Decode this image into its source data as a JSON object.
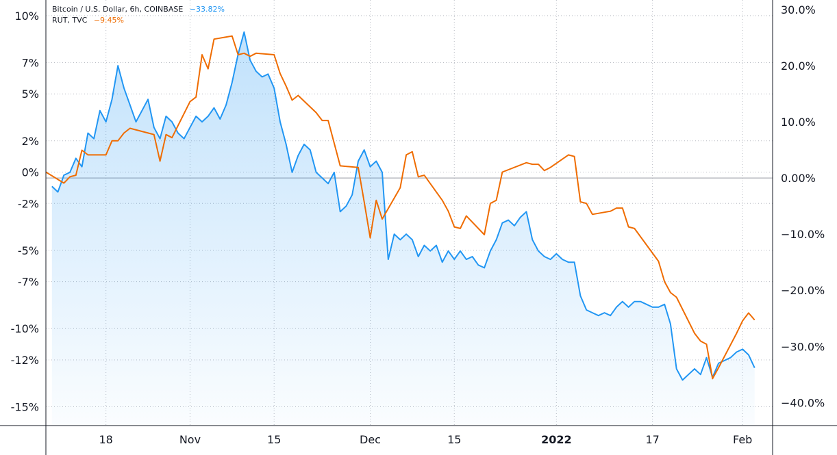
{
  "legend": {
    "btc_label": "Bitcoin / U.S. Dollar, 6h, COINBASE",
    "btc_value": "−33.82%",
    "rut_label": "RUT, TVC",
    "rut_value": "−9.45%"
  },
  "colors": {
    "btc": "#2196f3",
    "rut": "#ef6c00",
    "grid": "#b9bcc4",
    "axis": "#131722",
    "zero": "#9598a1"
  },
  "chart_data": {
    "type": "line",
    "x_axis": {
      "ticks": [
        {
          "label": "18",
          "date": "2021-10-18"
        },
        {
          "label": "Nov",
          "date": "2021-11-01"
        },
        {
          "label": "15",
          "date": "2021-11-15"
        },
        {
          "label": "Dec",
          "date": "2021-12-01"
        },
        {
          "label": "15",
          "date": "2021-12-15"
        },
        {
          "label": "2022",
          "date": "2022-01-01",
          "bold": true
        },
        {
          "label": "17",
          "date": "2022-01-17"
        },
        {
          "label": "Feb",
          "date": "2022-02-01"
        }
      ],
      "range": [
        "2021-10-08",
        "2022-02-06"
      ]
    },
    "left_axis": {
      "ticks": [
        "10%",
        "7%",
        "5%",
        "2%",
        "0%",
        "-2%",
        "-5%",
        "-7%",
        "-10%",
        "-12%",
        "-15%"
      ],
      "ylim": [
        -16.2,
        11.0
      ],
      "scale": "percent"
    },
    "right_axis": {
      "ticks": [
        "30.0%",
        "20.0%",
        "10.0%",
        "0.00%",
        "−10.0%",
        "−20.0%",
        "−30.0%",
        "−40.0%"
      ],
      "ylim": [
        -44.1,
        31.7
      ],
      "scale": "percent"
    },
    "grid": true,
    "legend_position": "top-left",
    "series": [
      {
        "name": "Bitcoin / U.S. Dollar, 6h, COINBASE",
        "axis": "right",
        "fill": true,
        "points": [
          [
            "2021-10-09",
            -1.5
          ],
          [
            "2021-10-10",
            -2.5
          ],
          [
            "2021-10-11",
            0.5
          ],
          [
            "2021-10-12",
            1.0
          ],
          [
            "2021-10-13",
            3.5
          ],
          [
            "2021-10-14",
            2.0
          ],
          [
            "2021-10-15",
            8.0
          ],
          [
            "2021-10-16",
            7.0
          ],
          [
            "2021-10-17",
            12.0
          ],
          [
            "2021-10-18",
            10.0
          ],
          [
            "2021-10-19",
            14.0
          ],
          [
            "2021-10-20",
            20.0
          ],
          [
            "2021-10-21",
            16.0
          ],
          [
            "2021-10-22",
            13.0
          ],
          [
            "2021-10-23",
            10.0
          ],
          [
            "2021-10-24",
            12.0
          ],
          [
            "2021-10-25",
            14.0
          ],
          [
            "2021-10-26",
            9.0
          ],
          [
            "2021-10-27",
            7.0
          ],
          [
            "2021-10-28",
            11.0
          ],
          [
            "2021-10-29",
            10.0
          ],
          [
            "2021-10-30",
            8.0
          ],
          [
            "2021-10-31",
            7.0
          ],
          [
            "2021-11-01",
            9.0
          ],
          [
            "2021-11-02",
            11.0
          ],
          [
            "2021-11-03",
            10.0
          ],
          [
            "2021-11-04",
            11.0
          ],
          [
            "2021-11-05",
            12.5
          ],
          [
            "2021-11-06",
            10.5
          ],
          [
            "2021-11-07",
            13.0
          ],
          [
            "2021-11-08",
            17.0
          ],
          [
            "2021-11-09",
            22.0
          ],
          [
            "2021-11-10",
            26.0
          ],
          [
            "2021-11-11",
            21.0
          ],
          [
            "2021-11-12",
            19.0
          ],
          [
            "2021-11-13",
            18.0
          ],
          [
            "2021-11-14",
            18.5
          ],
          [
            "2021-11-15",
            16.0
          ],
          [
            "2021-11-16",
            10.0
          ],
          [
            "2021-11-17",
            6.0
          ],
          [
            "2021-11-18",
            1.0
          ],
          [
            "2021-11-19",
            4.0
          ],
          [
            "2021-11-20",
            6.0
          ],
          [
            "2021-11-21",
            5.0
          ],
          [
            "2021-11-22",
            1.0
          ],
          [
            "2021-11-23",
            0.0
          ],
          [
            "2021-11-24",
            -1.0
          ],
          [
            "2021-11-25",
            1.0
          ],
          [
            "2021-11-26",
            -6.0
          ],
          [
            "2021-11-27",
            -5.0
          ],
          [
            "2021-11-28",
            -3.0
          ],
          [
            "2021-11-29",
            3.0
          ],
          [
            "2021-11-30",
            5.0
          ],
          [
            "2021-12-01",
            2.0
          ],
          [
            "2021-12-02",
            3.0
          ],
          [
            "2021-12-03",
            1.0
          ],
          [
            "2021-12-04",
            -14.5
          ],
          [
            "2021-12-05",
            -10.0
          ],
          [
            "2021-12-06",
            -11.0
          ],
          [
            "2021-12-07",
            -10.0
          ],
          [
            "2021-12-08",
            -11.0
          ],
          [
            "2021-12-09",
            -14.0
          ],
          [
            "2021-12-10",
            -12.0
          ],
          [
            "2021-12-11",
            -13.0
          ],
          [
            "2021-12-12",
            -12.0
          ],
          [
            "2021-12-13",
            -15.0
          ],
          [
            "2021-12-14",
            -13.0
          ],
          [
            "2021-12-15",
            -14.5
          ],
          [
            "2021-12-16",
            -13.0
          ],
          [
            "2021-12-17",
            -14.5
          ],
          [
            "2021-12-18",
            -14.0
          ],
          [
            "2021-12-19",
            -15.5
          ],
          [
            "2021-12-20",
            -16.0
          ],
          [
            "2021-12-21",
            -13.0
          ],
          [
            "2021-12-22",
            -11.0
          ],
          [
            "2021-12-23",
            -8.0
          ],
          [
            "2021-12-24",
            -7.5
          ],
          [
            "2021-12-25",
            -8.5
          ],
          [
            "2021-12-26",
            -7.0
          ],
          [
            "2021-12-27",
            -6.0
          ],
          [
            "2021-12-28",
            -11.0
          ],
          [
            "2021-12-29",
            -13.0
          ],
          [
            "2021-12-30",
            -14.0
          ],
          [
            "2021-12-31",
            -14.5
          ],
          [
            "2022-01-01",
            -13.5
          ],
          [
            "2022-01-02",
            -14.5
          ],
          [
            "2022-01-03",
            -15.0
          ],
          [
            "2022-01-04",
            -15.0
          ],
          [
            "2022-01-05",
            -21.0
          ],
          [
            "2022-01-06",
            -23.5
          ],
          [
            "2022-01-07",
            -24.0
          ],
          [
            "2022-01-08",
            -24.5
          ],
          [
            "2022-01-09",
            -24.0
          ],
          [
            "2022-01-10",
            -24.5
          ],
          [
            "2022-01-11",
            -23.0
          ],
          [
            "2022-01-12",
            -22.0
          ],
          [
            "2022-01-13",
            -23.0
          ],
          [
            "2022-01-14",
            -22.0
          ],
          [
            "2022-01-15",
            -22.0
          ],
          [
            "2022-01-16",
            -22.5
          ],
          [
            "2022-01-17",
            -23.0
          ],
          [
            "2022-01-18",
            -23.0
          ],
          [
            "2022-01-19",
            -22.5
          ],
          [
            "2022-01-20",
            -26.0
          ],
          [
            "2022-01-21",
            -34.0
          ],
          [
            "2022-01-22",
            -36.0
          ],
          [
            "2022-01-23",
            -35.0
          ],
          [
            "2022-01-24",
            -34.0
          ],
          [
            "2022-01-25",
            -35.0
          ],
          [
            "2022-01-26",
            -32.0
          ],
          [
            "2022-01-27",
            -35.5
          ],
          [
            "2022-01-28",
            -33.0
          ],
          [
            "2022-01-29",
            -32.5
          ],
          [
            "2022-01-30",
            -32.0
          ],
          [
            "2022-01-31",
            -31.0
          ],
          [
            "2022-02-01",
            -30.5
          ],
          [
            "2022-02-02",
            -31.5
          ],
          [
            "2022-02-03",
            -33.82
          ]
        ]
      },
      {
        "name": "RUT, TVC",
        "axis": "left",
        "fill": false,
        "points": [
          [
            "2021-10-08",
            0.0
          ],
          [
            "2021-10-11",
            -0.7
          ],
          [
            "2021-10-12",
            -0.3
          ],
          [
            "2021-10-13",
            -0.2
          ],
          [
            "2021-10-14",
            1.4
          ],
          [
            "2021-10-15",
            1.1
          ],
          [
            "2021-10-18",
            1.1
          ],
          [
            "2021-10-19",
            2.0
          ],
          [
            "2021-10-20",
            2.0
          ],
          [
            "2021-10-21",
            2.5
          ],
          [
            "2021-10-22",
            2.8
          ],
          [
            "2021-10-25",
            2.5
          ],
          [
            "2021-10-26",
            2.4
          ],
          [
            "2021-10-27",
            0.7
          ],
          [
            "2021-10-28",
            2.4
          ],
          [
            "2021-10-29",
            2.2
          ],
          [
            "2021-11-01",
            4.5
          ],
          [
            "2021-11-02",
            4.8
          ],
          [
            "2021-11-03",
            7.5
          ],
          [
            "2021-11-04",
            6.6
          ],
          [
            "2021-11-05",
            8.5
          ],
          [
            "2021-11-08",
            8.7
          ],
          [
            "2021-11-09",
            7.5
          ],
          [
            "2021-11-10",
            7.6
          ],
          [
            "2021-11-11",
            7.4
          ],
          [
            "2021-11-12",
            7.6
          ],
          [
            "2021-11-15",
            7.5
          ],
          [
            "2021-11-16",
            6.3
          ],
          [
            "2021-11-17",
            5.5
          ],
          [
            "2021-11-18",
            4.6
          ],
          [
            "2021-11-19",
            4.9
          ],
          [
            "2021-11-22",
            3.8
          ],
          [
            "2021-11-23",
            3.3
          ],
          [
            "2021-11-24",
            3.3
          ],
          [
            "2021-11-26",
            0.4
          ],
          [
            "2021-11-29",
            0.3
          ],
          [
            "2021-11-30",
            -1.9
          ],
          [
            "2021-12-01",
            -4.2
          ],
          [
            "2021-12-02",
            -1.8
          ],
          [
            "2021-12-03",
            -3.0
          ],
          [
            "2021-12-06",
            -1.0
          ],
          [
            "2021-12-07",
            1.1
          ],
          [
            "2021-12-08",
            1.3
          ],
          [
            "2021-12-09",
            -0.3
          ],
          [
            "2021-12-10",
            -0.2
          ],
          [
            "2021-12-13",
            -1.8
          ],
          [
            "2021-12-14",
            -2.5
          ],
          [
            "2021-12-15",
            -3.5
          ],
          [
            "2021-12-16",
            -3.6
          ],
          [
            "2021-12-17",
            -2.8
          ],
          [
            "2021-12-20",
            -4.0
          ],
          [
            "2021-12-21",
            -2.0
          ],
          [
            "2021-12-22",
            -1.8
          ],
          [
            "2021-12-23",
            0.0
          ],
          [
            "2021-12-27",
            0.6
          ],
          [
            "2021-12-28",
            0.5
          ],
          [
            "2021-12-29",
            0.5
          ],
          [
            "2021-12-30",
            0.1
          ],
          [
            "2021-12-31",
            0.3
          ],
          [
            "2022-01-03",
            1.1
          ],
          [
            "2022-01-04",
            1.0
          ],
          [
            "2022-01-05",
            -1.9
          ],
          [
            "2022-01-06",
            -2.0
          ],
          [
            "2022-01-07",
            -2.7
          ],
          [
            "2022-01-10",
            -2.5
          ],
          [
            "2022-01-11",
            -2.3
          ],
          [
            "2022-01-12",
            -2.3
          ],
          [
            "2022-01-13",
            -3.5
          ],
          [
            "2022-01-14",
            -3.6
          ],
          [
            "2022-01-18",
            -5.7
          ],
          [
            "2022-01-19",
            -7.0
          ],
          [
            "2022-01-20",
            -7.7
          ],
          [
            "2022-01-21",
            -8.0
          ],
          [
            "2022-01-24",
            -10.3
          ],
          [
            "2022-01-25",
            -10.8
          ],
          [
            "2022-01-26",
            -11.0
          ],
          [
            "2022-01-27",
            -13.2
          ],
          [
            "2022-01-28",
            -12.5
          ],
          [
            "2022-01-31",
            -10.3
          ],
          [
            "2022-02-01",
            -9.5
          ],
          [
            "2022-02-02",
            -9.0
          ],
          [
            "2022-02-03",
            -9.45
          ]
        ]
      }
    ]
  }
}
